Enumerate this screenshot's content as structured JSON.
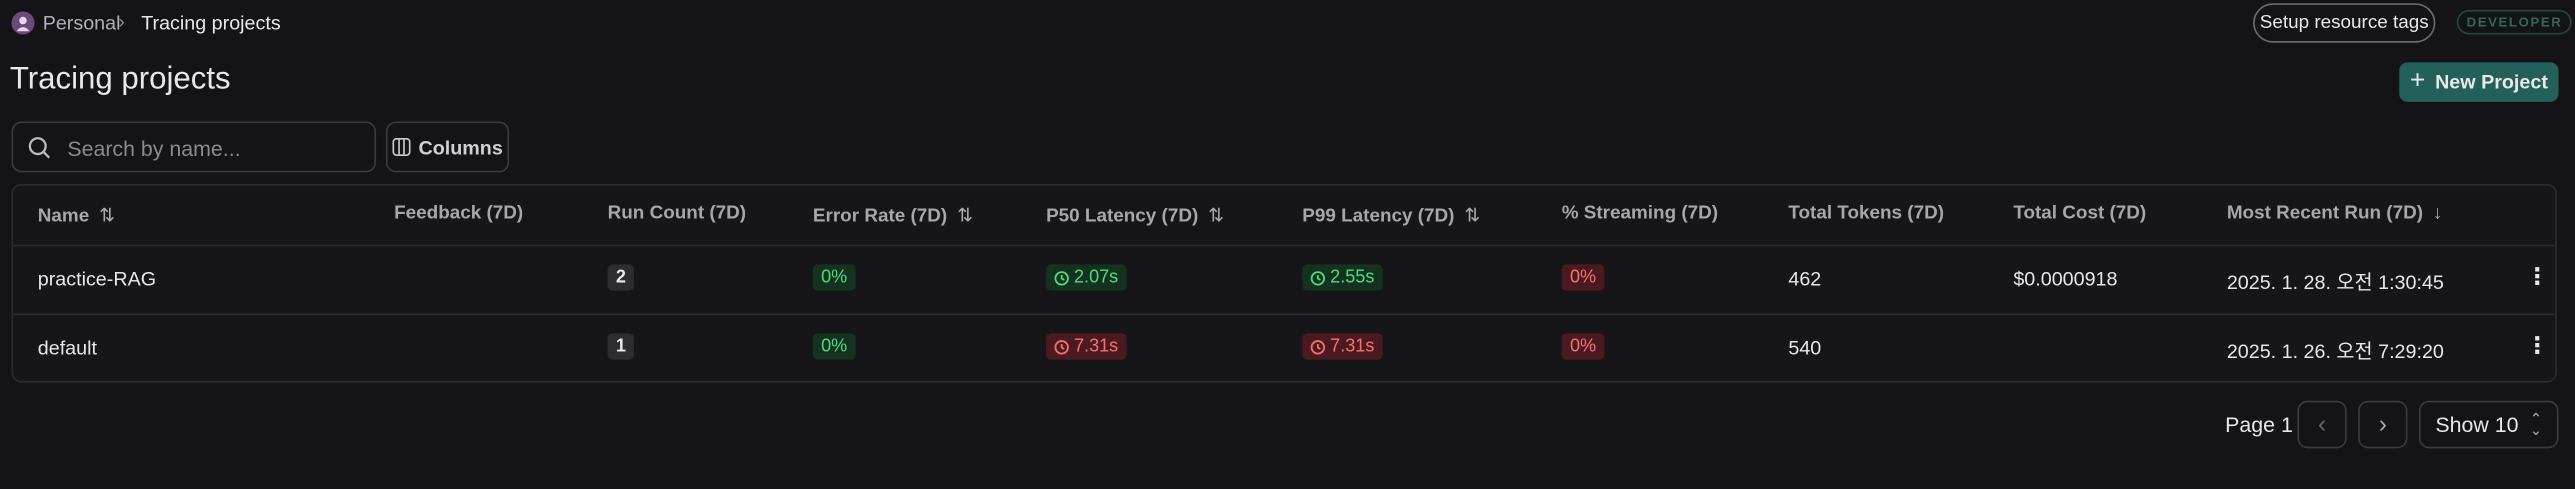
{
  "breadcrumb": {
    "workspace": "Personal",
    "current": "Tracing projects"
  },
  "header": {
    "setup_button": "Setup resource tags",
    "badge": "DEVELOPER",
    "title": "Tracing projects",
    "new_button": "New Project"
  },
  "toolbar": {
    "search_placeholder": "Search by name...",
    "columns_button": "Columns"
  },
  "table": {
    "columns": [
      "Name",
      "Feedback (7D)",
      "Run Count (7D)",
      "Error Rate (7D)",
      "P50 Latency (7D)",
      "P99 Latency (7D)",
      "% Streaming (7D)",
      "Total Tokens (7D)",
      "Total Cost (7D)",
      "Most Recent Run (7D)"
    ],
    "rows": [
      {
        "name": "practice-RAG",
        "run_count": "2",
        "error_rate": "0%",
        "p50": "2.07s",
        "p99": "2.55s",
        "streaming": "0%",
        "tokens": "462",
        "cost": "$0.0000918",
        "recent": "2025. 1. 28. 오전 1:30:45"
      },
      {
        "name": "default",
        "run_count": "1",
        "error_rate": "0%",
        "p50": "7.31s",
        "p99": "7.31s",
        "streaming": "0%",
        "tokens": "540",
        "recent": "2025. 1. 26. 오전 7:29:20"
      }
    ]
  },
  "pagination": {
    "page": "Page 1",
    "show": "Show 10"
  }
}
